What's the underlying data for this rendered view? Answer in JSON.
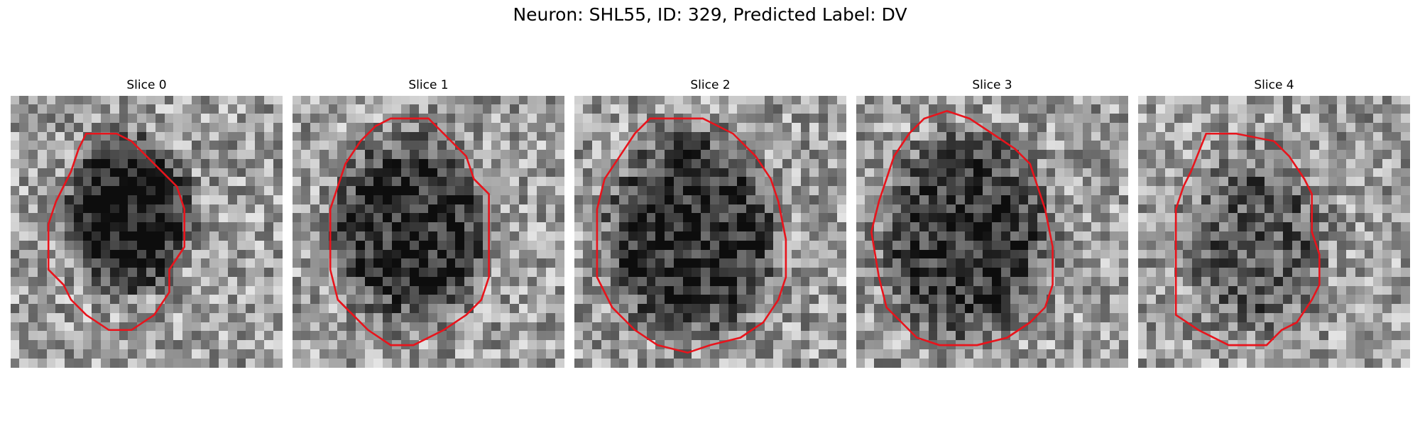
{
  "figure": {
    "title": "Neuron: SHL55, ID: 329, Predicted Label: DV",
    "contour_color": "#e8141c",
    "colormap": "gray",
    "grid_size": 30
  },
  "panels": [
    {
      "title": "Slice 0",
      "image_description": "grayscale microscopy crop with a dark oval cell body outlined in red",
      "contour_cells": [
        [
          10,
          5
        ],
        [
          14,
          5
        ],
        [
          16,
          6
        ],
        [
          18,
          8
        ],
        [
          20,
          10
        ],
        [
          22,
          12
        ],
        [
          23,
          15
        ],
        [
          23,
          20
        ],
        [
          21,
          23
        ],
        [
          21,
          26
        ],
        [
          19,
          29
        ],
        [
          16,
          31
        ],
        [
          13,
          31
        ],
        [
          10,
          29
        ],
        [
          8,
          27
        ],
        [
          7,
          25
        ],
        [
          5,
          23
        ],
        [
          5,
          17
        ],
        [
          6,
          14
        ],
        [
          7,
          12
        ],
        [
          8,
          10
        ],
        [
          9,
          7
        ],
        [
          10,
          5
        ]
      ],
      "dark_regions": [
        {
          "cx": 15,
          "cy": 15,
          "rx": 8,
          "ry": 10,
          "depth": 0.55
        }
      ]
    },
    {
      "title": "Slice 1",
      "image_description": "grayscale microscopy crop with a large dark round cell body outlined in red",
      "contour_cells": [
        [
          11,
          4
        ],
        [
          13,
          3
        ],
        [
          18,
          3
        ],
        [
          20,
          5
        ],
        [
          23,
          8
        ],
        [
          24,
          11
        ],
        [
          26,
          13
        ],
        [
          26,
          24
        ],
        [
          25,
          27
        ],
        [
          23,
          29
        ],
        [
          20,
          31
        ],
        [
          16,
          33
        ],
        [
          13,
          33
        ],
        [
          10,
          31
        ],
        [
          8,
          29
        ],
        [
          6,
          27
        ],
        [
          5,
          23
        ],
        [
          5,
          15
        ],
        [
          6,
          12
        ],
        [
          7,
          9
        ],
        [
          9,
          6
        ],
        [
          11,
          4
        ]
      ],
      "dark_regions": [
        {
          "cx": 15,
          "cy": 17,
          "rx": 10,
          "ry": 12,
          "depth": 0.45
        }
      ]
    },
    {
      "title": "Slice 2",
      "image_description": "grayscale microscopy crop with a large dark round cell body outlined in red",
      "contour_cells": [
        [
          10,
          3
        ],
        [
          17,
          3
        ],
        [
          21,
          5
        ],
        [
          24,
          8
        ],
        [
          26,
          11
        ],
        [
          27,
          14
        ],
        [
          28,
          19
        ],
        [
          28,
          24
        ],
        [
          27,
          27
        ],
        [
          25,
          30
        ],
        [
          22,
          32
        ],
        [
          18,
          33
        ],
        [
          15,
          34
        ],
        [
          11,
          33
        ],
        [
          8,
          31
        ],
        [
          5,
          28
        ],
        [
          3,
          24
        ],
        [
          3,
          15
        ],
        [
          4,
          11
        ],
        [
          6,
          8
        ],
        [
          8,
          5
        ],
        [
          10,
          3
        ]
      ],
      "dark_regions": [
        {
          "cx": 15,
          "cy": 18,
          "rx": 11,
          "ry": 13,
          "depth": 0.45
        }
      ]
    },
    {
      "title": "Slice 3",
      "image_description": "grayscale microscopy crop with a large mottled cell body outlined in red",
      "contour_cells": [
        [
          9,
          3
        ],
        [
          12,
          2
        ],
        [
          15,
          3
        ],
        [
          18,
          5
        ],
        [
          21,
          7
        ],
        [
          23,
          9
        ],
        [
          24,
          12
        ],
        [
          25,
          15
        ],
        [
          26,
          20
        ],
        [
          26,
          25
        ],
        [
          25,
          28
        ],
        [
          23,
          30
        ],
        [
          20,
          32
        ],
        [
          16,
          33
        ],
        [
          11,
          33
        ],
        [
          8,
          32
        ],
        [
          6,
          30
        ],
        [
          4,
          28
        ],
        [
          3,
          24
        ],
        [
          2,
          18
        ],
        [
          3,
          14
        ],
        [
          4,
          11
        ],
        [
          5,
          8
        ],
        [
          7,
          5
        ],
        [
          9,
          3
        ]
      ],
      "dark_regions": [
        {
          "cx": 14,
          "cy": 18,
          "rx": 11,
          "ry": 13,
          "depth": 0.4
        }
      ]
    },
    {
      "title": "Slice 4",
      "image_description": "grayscale microscopy crop with a faint cell body outlined in red",
      "contour_cells": [
        [
          9,
          5
        ],
        [
          13,
          5
        ],
        [
          18,
          6
        ],
        [
          20,
          8
        ],
        [
          22,
          11
        ],
        [
          23,
          13
        ],
        [
          23,
          18
        ],
        [
          24,
          21
        ],
        [
          24,
          25
        ],
        [
          23,
          27
        ],
        [
          21,
          30
        ],
        [
          19,
          31
        ],
        [
          17,
          33
        ],
        [
          12,
          33
        ],
        [
          8,
          31
        ],
        [
          5,
          29
        ],
        [
          5,
          15
        ],
        [
          6,
          12
        ],
        [
          7,
          10
        ],
        [
          9,
          5
        ]
      ],
      "dark_regions": [
        {
          "cx": 15,
          "cy": 19,
          "rx": 9,
          "ry": 12,
          "depth": 0.25
        }
      ]
    }
  ]
}
